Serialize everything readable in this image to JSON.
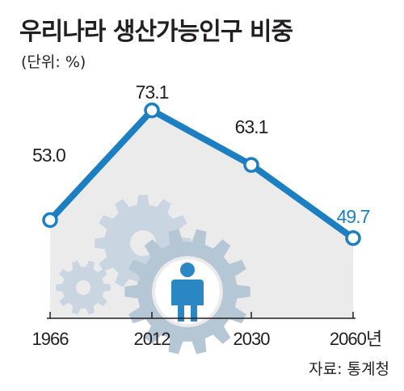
{
  "chart_data": {
    "type": "line",
    "title": "우리나라 생산가능인구 비중",
    "unit_label": "(단위: %)",
    "categories": [
      "1966",
      "2012",
      "2030",
      "2060년"
    ],
    "series": [
      {
        "values": [
          53.0,
          73.1,
          63.1,
          49.7
        ]
      }
    ],
    "value_labels": [
      "53.0",
      "73.1",
      "63.1",
      "49.7"
    ],
    "ylim": [
      35,
      80
    ],
    "grid": false,
    "source": "자료: 통계청",
    "colors": {
      "line": "#1b7fc1",
      "highlight_label": "#1b7fc1",
      "area": "#ebebec",
      "gear": "#c9d6e1",
      "gear_dark": "#b5c6d4",
      "person": "#2b87c4"
    }
  }
}
